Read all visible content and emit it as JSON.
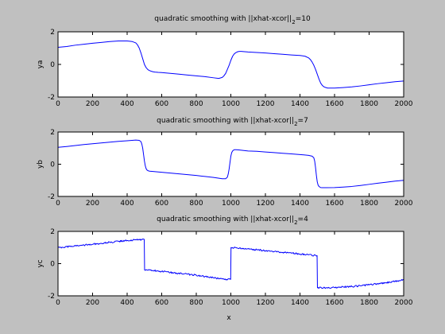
{
  "colors": {
    "figure_background": "#c0c0c0",
    "axes_background": "#ffffff",
    "axes_edge": "#000000",
    "line": "#0000ff",
    "text": "#000000"
  },
  "figure": {
    "xlabel": "x"
  },
  "chart_data": [
    {
      "type": "line",
      "title": "quadratic smoothing with ||xhat-xcor||",
      "title_subscript": "2",
      "title_suffix": "=10",
      "xlabel": "",
      "ylabel": "ya",
      "xlim": [
        0,
        2000
      ],
      "ylim": [
        -2,
        2
      ],
      "xticks": [
        0,
        200,
        400,
        600,
        800,
        1000,
        1200,
        1400,
        1600,
        1800,
        2000
      ],
      "yticks": [
        -2,
        0,
        2
      ],
      "grid": false,
      "series": [
        {
          "color": "#0000ff",
          "x": [
            0,
            50,
            100,
            150,
            200,
            250,
            300,
            350,
            400,
            430,
            450,
            460,
            470,
            480,
            490,
            500,
            510,
            520,
            530,
            540,
            550,
            560,
            580,
            600,
            650,
            700,
            750,
            800,
            850,
            900,
            930,
            950,
            960,
            970,
            980,
            990,
            1000,
            1010,
            1020,
            1030,
            1040,
            1050,
            1060,
            1080,
            1100,
            1150,
            1200,
            1250,
            1300,
            1350,
            1400,
            1430,
            1450,
            1460,
            1470,
            1480,
            1490,
            1500,
            1510,
            1520,
            1530,
            1540,
            1550,
            1560,
            1580,
            1600,
            1650,
            1700,
            1750,
            1800,
            1850,
            1900,
            1950,
            2000
          ],
          "y": [
            1.05,
            1.1,
            1.18,
            1.24,
            1.3,
            1.35,
            1.4,
            1.44,
            1.44,
            1.4,
            1.32,
            1.2,
            1.0,
            0.7,
            0.35,
            0.0,
            -0.2,
            -0.32,
            -0.38,
            -0.42,
            -0.45,
            -0.47,
            -0.49,
            -0.5,
            -0.55,
            -0.6,
            -0.65,
            -0.7,
            -0.75,
            -0.82,
            -0.86,
            -0.8,
            -0.7,
            -0.55,
            -0.3,
            -0.05,
            0.25,
            0.5,
            0.65,
            0.73,
            0.78,
            0.8,
            0.8,
            0.78,
            0.76,
            0.73,
            0.7,
            0.66,
            0.62,
            0.58,
            0.55,
            0.5,
            0.4,
            0.3,
            0.15,
            -0.05,
            -0.3,
            -0.6,
            -0.9,
            -1.15,
            -1.3,
            -1.38,
            -1.42,
            -1.45,
            -1.45,
            -1.45,
            -1.42,
            -1.38,
            -1.32,
            -1.25,
            -1.18,
            -1.12,
            -1.06,
            -1.02
          ]
        }
      ]
    },
    {
      "type": "line",
      "title": "quadratic smoothing with ||xhat-xcor||",
      "title_subscript": "2",
      "title_suffix": "=7",
      "xlabel": "",
      "ylabel": "yb",
      "xlim": [
        0,
        2000
      ],
      "ylim": [
        -2,
        2
      ],
      "xticks": [
        0,
        200,
        400,
        600,
        800,
        1000,
        1200,
        1400,
        1600,
        1800,
        2000
      ],
      "yticks": [
        -2,
        0,
        2
      ],
      "grid": false,
      "series": [
        {
          "color": "#0000ff",
          "x": [
            0,
            50,
            100,
            150,
            200,
            250,
            300,
            350,
            400,
            450,
            470,
            480,
            485,
            490,
            495,
            500,
            505,
            510,
            515,
            520,
            530,
            550,
            600,
            650,
            700,
            750,
            800,
            850,
            900,
            950,
            970,
            980,
            985,
            990,
            995,
            1000,
            1005,
            1010,
            1015,
            1020,
            1030,
            1050,
            1100,
            1150,
            1200,
            1250,
            1300,
            1350,
            1400,
            1450,
            1470,
            1480,
            1485,
            1490,
            1495,
            1500,
            1505,
            1510,
            1515,
            1520,
            1530,
            1550,
            1600,
            1650,
            1700,
            1750,
            1800,
            1850,
            1900,
            1950,
            2000
          ],
          "y": [
            1.05,
            1.1,
            1.16,
            1.22,
            1.27,
            1.32,
            1.37,
            1.42,
            1.46,
            1.5,
            1.48,
            1.4,
            1.25,
            1.0,
            0.6,
            0.2,
            -0.1,
            -0.28,
            -0.36,
            -0.4,
            -0.43,
            -0.45,
            -0.5,
            -0.55,
            -0.6,
            -0.65,
            -0.7,
            -0.76,
            -0.82,
            -0.9,
            -0.9,
            -0.8,
            -0.6,
            -0.3,
            0.1,
            0.5,
            0.72,
            0.82,
            0.87,
            0.9,
            0.9,
            0.88,
            0.82,
            0.8,
            0.76,
            0.72,
            0.68,
            0.64,
            0.6,
            0.55,
            0.5,
            0.4,
            0.2,
            -0.2,
            -0.7,
            -1.1,
            -1.3,
            -1.38,
            -1.42,
            -1.45,
            -1.46,
            -1.46,
            -1.45,
            -1.42,
            -1.38,
            -1.32,
            -1.25,
            -1.18,
            -1.12,
            -1.05,
            -1.0
          ]
        }
      ]
    },
    {
      "type": "line",
      "title": "quadratic smoothing with ||xhat-xcor||",
      "title_subscript": "2",
      "title_suffix": "=4",
      "xlabel": "x",
      "ylabel": "yc",
      "xlim": [
        0,
        2000
      ],
      "ylim": [
        -2,
        2
      ],
      "xticks": [
        0,
        200,
        400,
        600,
        800,
        1000,
        1200,
        1400,
        1600,
        1800,
        2000
      ],
      "yticks": [
        -2,
        0,
        2
      ],
      "grid": false,
      "series": [
        {
          "color": "#0000ff",
          "x": [
            0,
            50,
            100,
            150,
            200,
            250,
            300,
            350,
            400,
            450,
            499,
            501,
            550,
            600,
            650,
            700,
            750,
            800,
            850,
            900,
            950,
            999,
            1001,
            1050,
            1100,
            1150,
            1200,
            1250,
            1300,
            1350,
            1400,
            1450,
            1499,
            1501,
            1550,
            1600,
            1650,
            1700,
            1750,
            1800,
            1850,
            1900,
            1950,
            2000
          ],
          "y": [
            1.0,
            1.05,
            1.1,
            1.15,
            1.2,
            1.26,
            1.32,
            1.38,
            1.44,
            1.48,
            1.5,
            -0.4,
            -0.42,
            -0.48,
            -0.55,
            -0.6,
            -0.66,
            -0.72,
            -0.8,
            -0.88,
            -0.95,
            -0.98,
            1.0,
            0.97,
            0.92,
            0.86,
            0.8,
            0.75,
            0.7,
            0.65,
            0.6,
            0.55,
            0.5,
            -1.5,
            -1.5,
            -1.48,
            -1.45,
            -1.42,
            -1.38,
            -1.32,
            -1.26,
            -1.18,
            -1.1,
            -1.02
          ],
          "noise_amplitude": 0.05
        }
      ]
    }
  ]
}
